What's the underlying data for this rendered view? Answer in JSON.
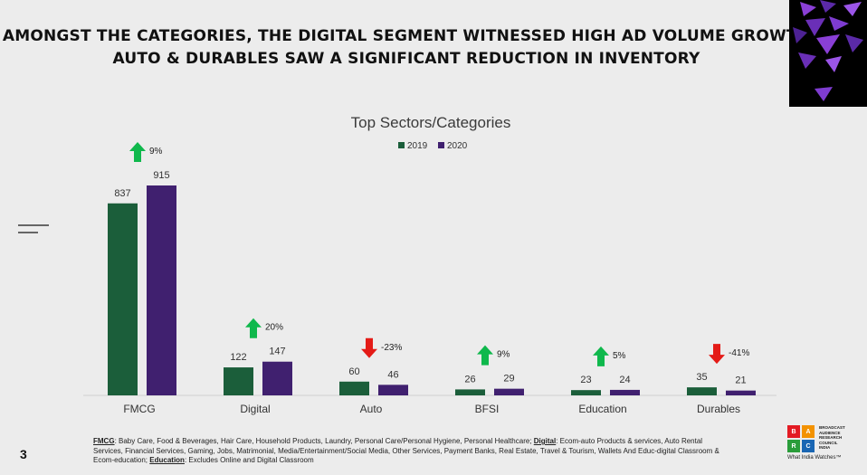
{
  "headline": {
    "line1": "AMONGST THE CATEGORIES, THE DIGITAL SEGMENT WITNESSED HIGH AD VOLUME GROWTH",
    "line2": "AUTO & DURABLES SAW A SIGNIFICANT REDUCTION IN INVENTORY"
  },
  "page_number": "3",
  "colors": {
    "series_2019": "#1b5e3a",
    "series_2020": "#40206f",
    "up_arrow": "#0fb84c",
    "down_arrow": "#e41b17",
    "accent": "#6a2fb7"
  },
  "chart_data": {
    "type": "bar",
    "title": "Top Sectors/Categories",
    "categories": [
      "FMCG",
      "Digital",
      "Auto",
      "BFSI",
      "Education",
      "Durables"
    ],
    "series": [
      {
        "name": "2019",
        "values": [
          837,
          122,
          60,
          26,
          23,
          35
        ]
      },
      {
        "name": "2020",
        "values": [
          915,
          147,
          46,
          29,
          24,
          21
        ]
      }
    ],
    "growth": [
      {
        "label": "9%",
        "direction": "up"
      },
      {
        "label": "20%",
        "direction": "up"
      },
      {
        "label": "-23%",
        "direction": "down"
      },
      {
        "label": "9%",
        "direction": "up"
      },
      {
        "label": "5%",
        "direction": "up"
      },
      {
        "label": "-41%",
        "direction": "down"
      }
    ],
    "ylim": [
      0,
      915
    ],
    "legend_position": "top-center",
    "grid": false,
    "xlabel": "",
    "ylabel": ""
  },
  "footnote": {
    "fmcg_label": "FMCG",
    "fmcg_text": ": Baby Care, Food & Beverages, Hair Care, Household Products, Laundry, Personal Care/Personal Hygiene, Personal Healthcare; ",
    "digital_label": "Digital",
    "digital_text": ": Ecom-auto Products & services, Auto Rental Services, Financial Services, Gaming, Jobs, Matrimonial, Media/Entertainment/Social Media, Other Services, Payment Banks, Real Estate, Travel & Tourism, Wallets And Educ-digital Classroom & Ecom-education; ",
    "education_label": "Education",
    "education_text": ": Excludes Online and Digital Classroom"
  },
  "logo": {
    "letters": [
      "B",
      "A",
      "R",
      "C"
    ],
    "name_lines": [
      "BROADCAST",
      "AUDIENCE",
      "RESEARCH",
      "COUNCIL",
      "INDIA"
    ],
    "tagline": "What India Watches™"
  }
}
